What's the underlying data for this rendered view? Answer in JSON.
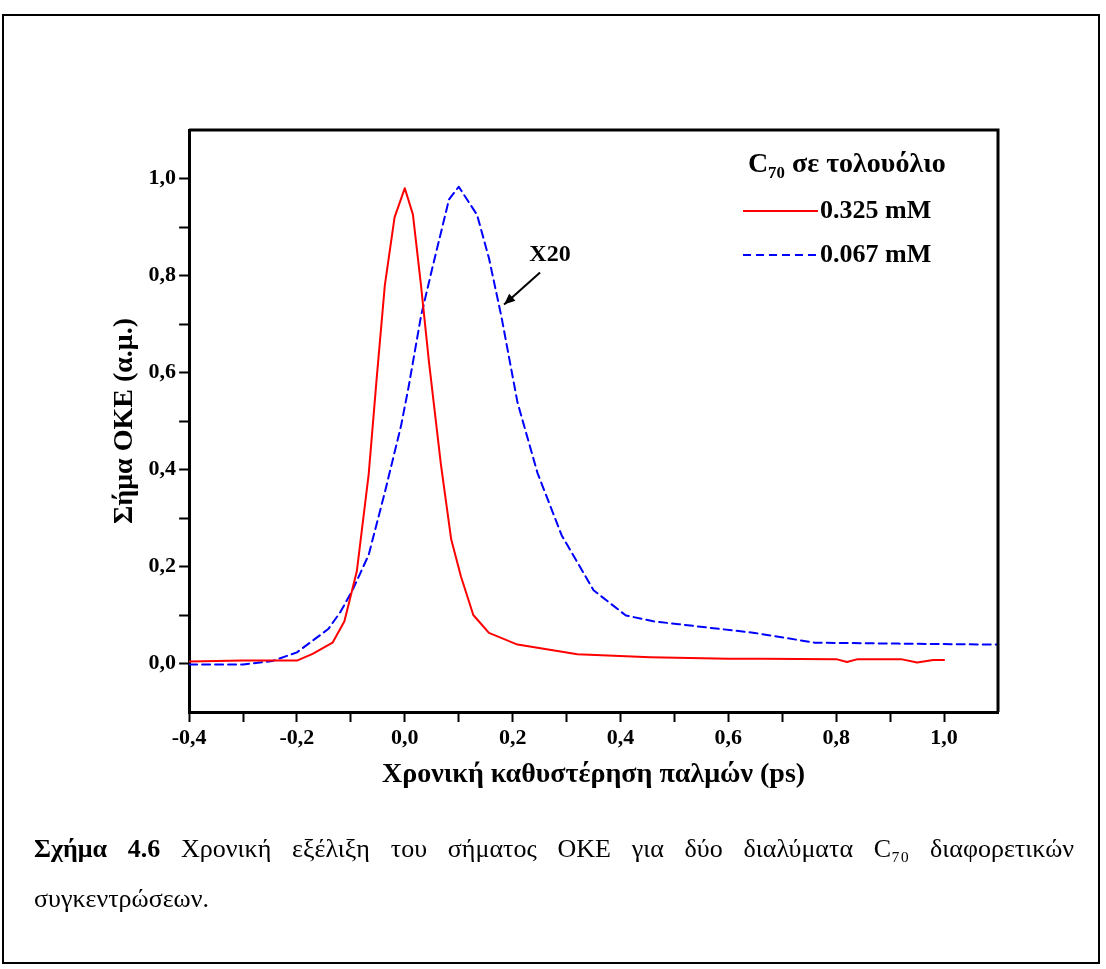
{
  "chart_data": {
    "type": "line",
    "xlabel": "Χρονική καθυστέρηση παλμών (ps)",
    "ylabel": "Σήμα OKE (α.μ.)",
    "legend_title": "C₇₀ σε τολουόλιο",
    "legend": "top right",
    "grid": false,
    "marker": "none",
    "xlim": [
      -0.4,
      1.1
    ],
    "ylim": [
      -0.1,
      1.1
    ],
    "xticks": [
      {
        "value": -0.4,
        "label": "-0,4"
      },
      {
        "value": -0.3,
        "label": null
      },
      {
        "value": -0.2,
        "label": "-0,2"
      },
      {
        "value": -0.1,
        "label": null
      },
      {
        "value": 0,
        "label": "0,0"
      },
      {
        "value": 0.1,
        "label": null
      },
      {
        "value": 0.2,
        "label": "0,2"
      },
      {
        "value": 0.3,
        "label": null
      },
      {
        "value": 0.4,
        "label": "0,4"
      },
      {
        "value": 0.5,
        "label": null
      },
      {
        "value": 0.6,
        "label": "0,6"
      },
      {
        "value": 0.7,
        "label": null
      },
      {
        "value": 0.8,
        "label": "0,8"
      },
      {
        "value": 0.9,
        "label": null
      },
      {
        "value": 1.0,
        "label": "1,0"
      }
    ],
    "yticks": [
      {
        "value": 0,
        "label": "0,0"
      },
      {
        "value": 0.1,
        "label": null
      },
      {
        "value": 0.2,
        "label": "0,2"
      },
      {
        "value": 0.3,
        "label": null
      },
      {
        "value": 0.4,
        "label": "0,4"
      },
      {
        "value": 0.5,
        "label": null
      },
      {
        "value": 0.6,
        "label": "0,6"
      },
      {
        "value": 0.7,
        "label": null
      },
      {
        "value": 0.8,
        "label": "0,8"
      },
      {
        "value": 0.9,
        "label": null
      },
      {
        "value": 1.0,
        "label": "1,0"
      }
    ],
    "series": [
      {
        "name": "0.325 mM",
        "color": "#ff0000",
        "line_style": "solid",
        "x": [
          -0.4,
          -0.3,
          -0.2,
          -0.171,
          -0.134,
          -0.112,
          -0.089,
          -0.067,
          -0.052,
          -0.037,
          -0.019,
          0,
          0.015,
          0.03,
          0.045,
          0.067,
          0.086,
          0.104,
          0.127,
          0.156,
          0.209,
          0.32,
          0.455,
          0.6,
          0.8,
          0.82,
          0.84,
          0.92,
          0.95,
          0.98,
          1.0
        ],
        "values": [
          0.004,
          0.006,
          0.006,
          0.02,
          0.043,
          0.087,
          0.19,
          0.39,
          0.59,
          0.78,
          0.92,
          0.98,
          0.926,
          0.78,
          0.62,
          0.41,
          0.256,
          0.18,
          0.1,
          0.063,
          0.039,
          0.019,
          0.013,
          0.01,
          0.009,
          0.003,
          0.009,
          0.009,
          0.002,
          0.007,
          0.007
        ]
      },
      {
        "name": "0.067 mM",
        "color": "#0000ff",
        "line_style": "dashed",
        "x": [
          -0.4,
          -0.3,
          -0.246,
          -0.2,
          -0.171,
          -0.142,
          -0.119,
          -0.097,
          -0.067,
          -0.037,
          -0.007,
          0.007,
          0.03,
          0.052,
          0.082,
          0.1,
          0.134,
          0.156,
          0.179,
          0.209,
          0.246,
          0.291,
          0.35,
          0.41,
          0.461,
          0.508,
          0.649,
          0.76,
          0.915,
          1.098
        ],
        "values": [
          -0.002,
          -0.002,
          0.005,
          0.023,
          0.047,
          0.071,
          0.107,
          0.151,
          0.224,
          0.353,
          0.49,
          0.57,
          0.716,
          0.82,
          0.957,
          0.983,
          0.925,
          0.836,
          0.716,
          0.538,
          0.393,
          0.264,
          0.151,
          0.099,
          0.087,
          0.081,
          0.063,
          0.043,
          0.041,
          0.039
        ]
      }
    ],
    "annotations": [
      {
        "text": "X20",
        "x": 0.184,
        "y": 0.74
      },
      "Σχήμα 4.6 Χρονική εξέλιξη του σήματος OKE για δύο διαλύματα C₇₀ διαφορετικών συγκεντρώσεων."
    ]
  }
}
